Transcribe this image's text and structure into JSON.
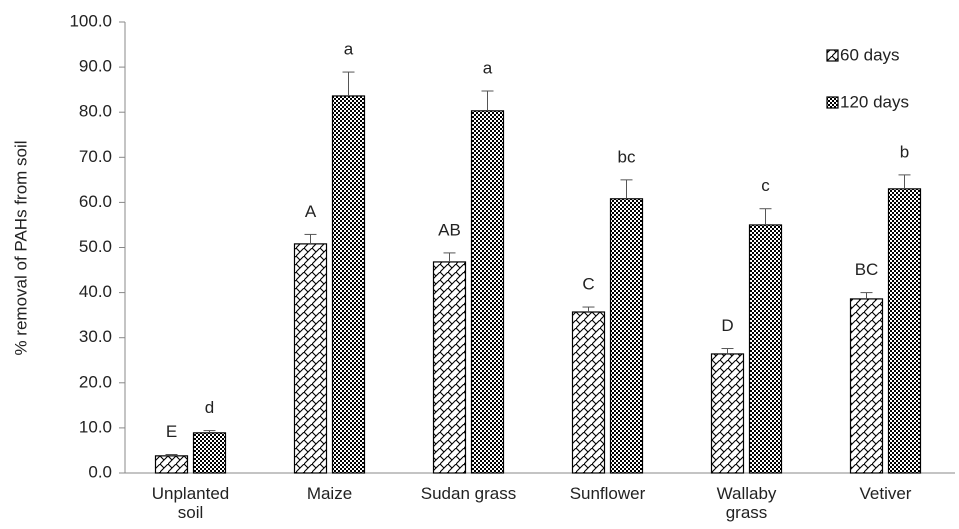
{
  "chart_data": {
    "type": "bar",
    "y_label": "% removal of PAHs from soil",
    "categories": [
      "Unplanted soil",
      "Maize",
      "Sudan grass",
      "Sunflower",
      "Wallaby grass",
      "Vetiver"
    ],
    "series": [
      {
        "name": "60 days",
        "color": "#000000",
        "values": [
          3.8,
          50.8,
          46.8,
          35.7,
          26.4,
          38.6
        ],
        "errors": [
          0.3,
          2.1,
          2.0,
          1.1,
          1.2,
          1.4
        ],
        "letters": [
          "E",
          "A",
          "AB",
          "C",
          "D",
          "BC"
        ]
      },
      {
        "name": "120 days",
        "color": "#000000",
        "values": [
          8.9,
          83.6,
          80.3,
          60.8,
          55.0,
          63.0
        ],
        "errors": [
          0.5,
          5.3,
          4.4,
          4.2,
          3.6,
          3.1
        ],
        "letters": [
          "d",
          "a",
          "a",
          "bc",
          "c",
          "b"
        ]
      }
    ],
    "ylim": [
      0,
      100
    ],
    "yticks": [
      {
        "value": 0,
        "label": "0.0"
      },
      {
        "value": 10,
        "label": "10.0"
      },
      {
        "value": 20,
        "label": "20.0"
      },
      {
        "value": 30,
        "label": "30.0"
      },
      {
        "value": 40,
        "label": "40.0"
      },
      {
        "value": 50,
        "label": "50.0"
      },
      {
        "value": 60,
        "label": "60.0"
      },
      {
        "value": 70,
        "label": "70.0"
      },
      {
        "value": 80,
        "label": "80.0"
      },
      {
        "value": 90,
        "label": "90.0"
      },
      {
        "value": 100,
        "label": "100.0"
      }
    ],
    "legend": "top-right"
  }
}
